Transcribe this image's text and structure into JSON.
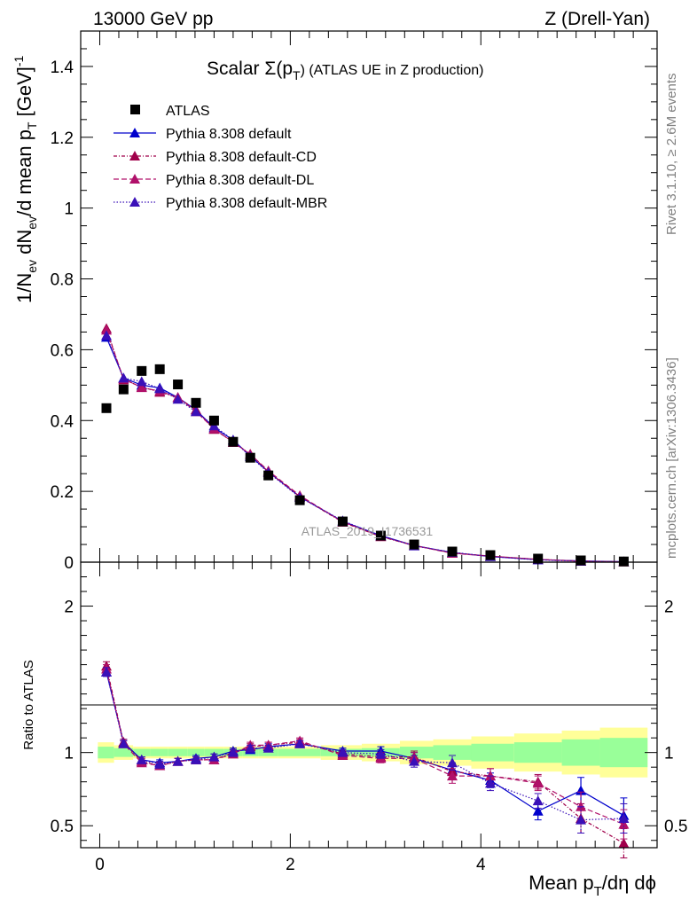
{
  "header": {
    "left": "13000 GeV pp",
    "right": "Z (Drell-Yan)"
  },
  "side_labels": {
    "rivet": "Rivet 3.1.10, ≥ 2.6M events",
    "mcplots": "mcplots.cern.ch [arXiv:1306.3436]"
  },
  "watermark": "ATLAS_2019_I1736531",
  "colors": {
    "atlas": "#000000",
    "default": "#0000cc",
    "cd": "#a0004a",
    "dl": "#b0106a",
    "mbr": "#3a10b8",
    "band_inner": "#99ff99",
    "band_outer": "#ffff99"
  },
  "chart_data": [
    {
      "type": "scatter",
      "title": {
        "prefix": "Scalar Σ(p",
        "sub": "T",
        "suffix": ") (ATLAS UE in Z production)"
      },
      "ylabel": {
        "a": "1/N",
        "a_sub": "ev",
        "b": " dN",
        "b_sub": "ev",
        "c": "/d mean p",
        "c_sub": "T",
        "d": " [GeV]",
        "d_sup": "-1"
      },
      "xlim": [
        -0.2,
        5.85
      ],
      "ylim": [
        0,
        1.5
      ],
      "yticks": [
        0,
        0.2,
        0.4,
        0.6,
        0.8,
        1,
        1.2,
        1.4
      ],
      "ytick_labels": [
        "0",
        "0.2",
        "0.4",
        "0.6",
        "0.8",
        "1",
        "1.2",
        "1.4"
      ],
      "legend_position": "top-left",
      "series": [
        {
          "name": "ATLAS",
          "x": [
            0.07,
            0.25,
            0.44,
            0.63,
            0.82,
            1.01,
            1.2,
            1.4,
            1.58,
            1.77,
            2.1,
            2.55,
            2.95,
            3.3,
            3.7,
            4.1,
            4.6,
            5.05,
            5.5
          ],
          "y": [
            0.435,
            0.488,
            0.54,
            0.545,
            0.502,
            0.45,
            0.4,
            0.34,
            0.295,
            0.245,
            0.175,
            0.115,
            0.075,
            0.05,
            0.03,
            0.02,
            0.01,
            0.005,
            0.002
          ]
        },
        {
          "name": "Pythia 8.308 default",
          "x": [
            0.07,
            0.25,
            0.44,
            0.63,
            0.82,
            1.01,
            1.2,
            1.4,
            1.58,
            1.77,
            2.1,
            2.55,
            2.95,
            3.3,
            3.7,
            4.1,
            4.6,
            5.05,
            5.5
          ],
          "y": [
            0.635,
            0.52,
            0.5,
            0.492,
            0.465,
            0.43,
            0.38,
            0.345,
            0.3,
            0.255,
            0.185,
            0.115,
            0.075,
            0.047,
            0.027,
            0.016,
            0.007,
            0.0035,
            0.0012
          ]
        },
        {
          "name": "Pythia 8.308 default-CD",
          "x": [
            0.07,
            0.25,
            0.44,
            0.63,
            0.82,
            1.01,
            1.2,
            1.4,
            1.58,
            1.77,
            2.1,
            2.55,
            2.95,
            3.3,
            3.7,
            4.1,
            4.6,
            5.05,
            5.5
          ],
          "y": [
            0.66,
            0.515,
            0.495,
            0.48,
            0.465,
            0.43,
            0.375,
            0.34,
            0.305,
            0.255,
            0.185,
            0.113,
            0.072,
            0.047,
            0.026,
            0.017,
            0.008,
            0.003,
            0.0008
          ]
        },
        {
          "name": "Pythia 8.308 default-DL",
          "x": [
            0.07,
            0.25,
            0.44,
            0.63,
            0.82,
            1.01,
            1.2,
            1.4,
            1.58,
            1.77,
            2.1,
            2.55,
            2.95,
            3.3,
            3.7,
            4.1,
            4.6,
            5.05,
            5.5
          ],
          "y": [
            0.655,
            0.518,
            0.493,
            0.483,
            0.465,
            0.425,
            0.377,
            0.338,
            0.305,
            0.258,
            0.188,
            0.114,
            0.073,
            0.047,
            0.025,
            0.017,
            0.008,
            0.0028,
            0.0009
          ]
        },
        {
          "name": "Pythia 8.308 default-MBR",
          "x": [
            0.07,
            0.25,
            0.44,
            0.63,
            0.82,
            1.01,
            1.2,
            1.4,
            1.58,
            1.77,
            2.1,
            2.55,
            2.95,
            3.3,
            3.7,
            4.1,
            4.6,
            5.05,
            5.5
          ],
          "y": [
            0.64,
            0.52,
            0.51,
            0.49,
            0.46,
            0.425,
            0.385,
            0.345,
            0.298,
            0.253,
            0.183,
            0.117,
            0.074,
            0.046,
            0.028,
            0.016,
            0.0066,
            0.0027,
            0.0011
          ]
        }
      ]
    },
    {
      "type": "line",
      "ylabel": "Ratio to ATLAS",
      "xlabel": {
        "a": "Mean p",
        "sub": "T",
        "b": "/dη dϕ"
      },
      "xlim": [
        -0.2,
        5.85
      ],
      "ylim": [
        0.35,
        2.3
      ],
      "yticks": [
        0.5,
        1,
        2
      ],
      "ytick_labels": [
        "0.5",
        "1",
        "2"
      ],
      "xticks": [
        0,
        2,
        4
      ],
      "xtick_labels": [
        "0",
        "2",
        "4"
      ],
      "bands": {
        "edges": [
          -0.02,
          0.15,
          0.35,
          0.53,
          0.72,
          0.92,
          1.1,
          1.3,
          1.5,
          1.67,
          1.87,
          2.32,
          2.75,
          3.15,
          3.5,
          3.9,
          4.35,
          4.85,
          5.25,
          5.75
        ],
        "inner_half": [
          0.04,
          0.03,
          0.025,
          0.025,
          0.025,
          0.025,
          0.025,
          0.025,
          0.025,
          0.025,
          0.025,
          0.025,
          0.03,
          0.04,
          0.05,
          0.06,
          0.07,
          0.09,
          0.1
        ],
        "outer_half": [
          0.07,
          0.05,
          0.04,
          0.04,
          0.04,
          0.04,
          0.04,
          0.04,
          0.04,
          0.04,
          0.04,
          0.05,
          0.06,
          0.08,
          0.09,
          0.11,
          0.13,
          0.15,
          0.17
        ]
      },
      "series": [
        {
          "name": "Pythia 8.308 default",
          "x": [
            0.07,
            0.25,
            0.44,
            0.63,
            0.82,
            1.01,
            1.2,
            1.4,
            1.58,
            1.77,
            2.1,
            2.55,
            2.95,
            3.3,
            3.7,
            4.1,
            4.6,
            5.05,
            5.5
          ],
          "y": [
            1.55,
            1.07,
            0.95,
            0.93,
            0.94,
            0.96,
            0.97,
            1.01,
            1.02,
            1.04,
            1.06,
            1.01,
            1.01,
            0.96,
            0.88,
            0.81,
            0.6,
            0.74,
            0.57
          ],
          "err": [
            0.03,
            0.02,
            0.02,
            0.02,
            0.02,
            0.02,
            0.02,
            0.02,
            0.02,
            0.02,
            0.02,
            0.02,
            0.03,
            0.04,
            0.05,
            0.05,
            0.06,
            0.09,
            0.12
          ]
        },
        {
          "name": "Pythia 8.308 default-CD",
          "x": [
            0.07,
            0.25,
            0.44,
            0.63,
            0.82,
            1.01,
            1.2,
            1.4,
            1.58,
            1.77,
            2.1,
            2.55,
            2.95,
            3.3,
            3.7,
            4.1,
            4.6,
            5.05,
            5.5
          ],
          "y": [
            1.59,
            1.07,
            0.94,
            0.91,
            0.94,
            0.95,
            0.95,
            1.0,
            1.04,
            1.05,
            1.07,
            0.99,
            0.97,
            0.97,
            0.87,
            0.84,
            0.8,
            0.55,
            0.38
          ],
          "err": [
            0.03,
            0.02,
            0.02,
            0.02,
            0.02,
            0.02,
            0.02,
            0.02,
            0.02,
            0.02,
            0.02,
            0.02,
            0.03,
            0.04,
            0.05,
            0.05,
            0.05,
            0.1,
            0.1
          ]
        },
        {
          "name": "Pythia 8.308 default-DL",
          "x": [
            0.07,
            0.25,
            0.44,
            0.63,
            0.82,
            1.01,
            1.2,
            1.4,
            1.58,
            1.77,
            2.1,
            2.55,
            2.95,
            3.3,
            3.7,
            4.1,
            4.6,
            5.05,
            5.5
          ],
          "y": [
            1.57,
            1.06,
            0.93,
            0.91,
            0.94,
            0.95,
            0.95,
            0.99,
            1.05,
            1.05,
            1.08,
            0.98,
            0.96,
            0.96,
            0.84,
            0.84,
            0.79,
            0.63,
            0.51
          ],
          "err": [
            0.03,
            0.02,
            0.02,
            0.02,
            0.02,
            0.02,
            0.02,
            0.02,
            0.02,
            0.02,
            0.02,
            0.02,
            0.03,
            0.04,
            0.05,
            0.05,
            0.05,
            0.1,
            0.1
          ]
        },
        {
          "name": "Pythia 8.308 default-MBR",
          "x": [
            0.07,
            0.25,
            0.44,
            0.63,
            0.82,
            1.01,
            1.2,
            1.4,
            1.58,
            1.77,
            2.1,
            2.55,
            2.95,
            3.3,
            3.7,
            4.1,
            4.6,
            5.05,
            5.5
          ],
          "y": [
            1.55,
            1.06,
            0.95,
            0.92,
            0.94,
            0.95,
            0.97,
            1.0,
            1.03,
            1.03,
            1.06,
            1.0,
            0.99,
            0.94,
            0.93,
            0.79,
            0.67,
            0.54,
            0.55
          ],
          "err": [
            0.03,
            0.02,
            0.02,
            0.02,
            0.02,
            0.02,
            0.02,
            0.02,
            0.02,
            0.02,
            0.02,
            0.02,
            0.03,
            0.04,
            0.05,
            0.05,
            0.05,
            0.09,
            0.1
          ]
        }
      ]
    }
  ]
}
